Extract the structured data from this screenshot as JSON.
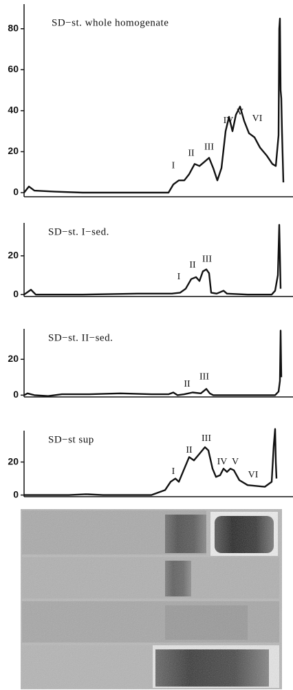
{
  "chart_data": [
    {
      "type": "line",
      "title": "SD−st. whole homogenate",
      "xlim": [
        0,
        391
      ],
      "ylim": [
        -2,
        92
      ],
      "yticks": [
        0,
        20,
        40,
        60,
        80
      ],
      "x": [
        0,
        7,
        15,
        45,
        85,
        165,
        210,
        217,
        225,
        233,
        240,
        248,
        255,
        262,
        269,
        275,
        281,
        287,
        293,
        298,
        303,
        308,
        314,
        320,
        327,
        335,
        343,
        353,
        361,
        366,
        370,
        371,
        372,
        373,
        374,
        375,
        377
      ],
      "series": [
        {
          "color": "#111111",
          "values": [
            0,
            3,
            1,
            0.5,
            0,
            0,
            0,
            4,
            6,
            6,
            9,
            14,
            13,
            15,
            17,
            12,
            6,
            12,
            30,
            37,
            30,
            38,
            42,
            35,
            29,
            27,
            22,
            18,
            14,
            13,
            28,
            80,
            85,
            50,
            46,
            30,
            5
          ]
        }
      ],
      "annotations": [
        {
          "text": "I",
          "x": 217,
          "y": 13
        },
        {
          "text": "II",
          "x": 243,
          "y": 19
        },
        {
          "text": "III",
          "x": 269,
          "y": 22
        },
        {
          "text": "IV",
          "x": 297,
          "y": 35
        },
        {
          "text": "V",
          "x": 314,
          "y": 39
        },
        {
          "text": "VI",
          "x": 339,
          "y": 36
        }
      ]
    },
    {
      "type": "line",
      "title": "SD−st.  I−sed.",
      "xlim": [
        0,
        391
      ],
      "ylim": [
        -1,
        37
      ],
      "yticks": [
        0,
        20
      ],
      "x": [
        0,
        10,
        17,
        45,
        85,
        165,
        215,
        227,
        235,
        243,
        250,
        255,
        260,
        265,
        269,
        272,
        280,
        290,
        295,
        325,
        360,
        365,
        369,
        371,
        372,
        373
      ],
      "series": [
        {
          "color": "#111111",
          "values": [
            0,
            2.5,
            0,
            0,
            0,
            0.5,
            0.5,
            1,
            3,
            8,
            9,
            7,
            12,
            13,
            11,
            1,
            0.5,
            2,
            0.5,
            0,
            0,
            2,
            10,
            36,
            20,
            3
          ]
        }
      ],
      "annotations": [
        {
          "text": "I",
          "x": 225,
          "y": 9
        },
        {
          "text": "II",
          "x": 245,
          "y": 15
        },
        {
          "text": "III",
          "x": 266,
          "y": 18
        }
      ]
    },
    {
      "type": "line",
      "title": "SD−st.  II−sed.",
      "xlim": [
        0,
        391
      ],
      "ylim": [
        -1,
        37
      ],
      "yticks": [
        0,
        20
      ],
      "x": [
        0,
        5,
        15,
        35,
        55,
        95,
        140,
        185,
        210,
        217,
        223,
        233,
        245,
        257,
        265,
        270,
        275,
        315,
        365,
        370,
        372,
        373,
        374
      ],
      "series": [
        {
          "color": "#111111",
          "values": [
            0,
            1,
            0,
            -0.5,
            0.5,
            0.5,
            1,
            0.5,
            0.5,
            1.5,
            0,
            0.5,
            1.5,
            1,
            3.5,
            1,
            0,
            0,
            0,
            2,
            8,
            36,
            10
          ]
        }
      ],
      "annotations": [
        {
          "text": "II",
          "x": 237,
          "y": 6
        },
        {
          "text": "III",
          "x": 262,
          "y": 10
        }
      ]
    },
    {
      "type": "line",
      "title": "SD−st  sup",
      "xlim": [
        0,
        391
      ],
      "ylim": [
        -1,
        39
      ],
      "yticks": [
        0,
        20
      ],
      "x": [
        0,
        25,
        65,
        90,
        115,
        185,
        205,
        213,
        220,
        225,
        233,
        240,
        247,
        255,
        263,
        268,
        274,
        279,
        285,
        290,
        295,
        300,
        305,
        313,
        325,
        350,
        360,
        363,
        365,
        366,
        367
      ],
      "series": [
        {
          "color": "#111111",
          "values": [
            0,
            0,
            0,
            0.5,
            0,
            0,
            3,
            8,
            10,
            8,
            16,
            23,
            21,
            25,
            29,
            27,
            16,
            11,
            12,
            16,
            14,
            16,
            15,
            9,
            6,
            5,
            8,
            30,
            40,
            20,
            10
          ]
        }
      ],
      "annotations": [
        {
          "text": "I",
          "x": 217,
          "y": 14
        },
        {
          "text": "II",
          "x": 240,
          "y": 27
        },
        {
          "text": "III",
          "x": 265,
          "y": 34
        },
        {
          "text": "IV",
          "x": 288,
          "y": 20
        },
        {
          "text": "V",
          "x": 307,
          "y": 20
        },
        {
          "text": "VI",
          "x": 333,
          "y": 12
        }
      ]
    }
  ]
}
